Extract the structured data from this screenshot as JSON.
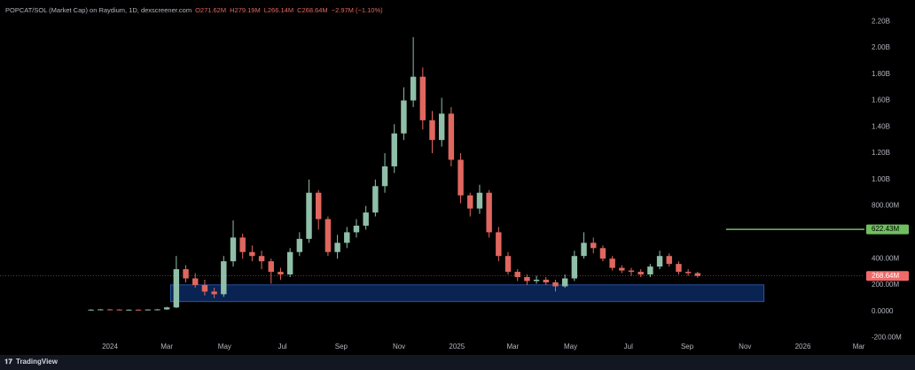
{
  "chart_data": {
    "type": "candlestick",
    "title": "POPCAT/SOL (Market Cap) on Raydium, 1D, dexscreener.com",
    "stats": [
      "O271.62M",
      "H279.19M",
      "L266.14M",
      "C268.64M",
      "−2.97M (−1.10%)"
    ],
    "x": [
      -20,
      -10,
      0,
      10,
      20,
      30,
      40,
      50,
      60,
      70,
      80,
      90,
      100,
      110,
      120,
      130,
      140,
      150,
      160,
      170,
      180,
      190,
      200,
      210,
      220,
      230,
      240,
      250,
      260,
      270,
      280,
      290,
      300,
      310,
      320,
      330,
      340,
      350,
      360,
      370,
      380,
      390,
      400,
      410,
      420,
      430,
      440,
      450,
      460,
      470,
      480,
      490,
      500,
      510,
      520,
      530,
      540,
      550,
      560,
      570,
      580,
      590,
      600,
      610,
      620
    ],
    "open": [
      10,
      13,
      15,
      14,
      12,
      13,
      12,
      14,
      15,
      30,
      320,
      250,
      200,
      150,
      130,
      380,
      560,
      450,
      420,
      380,
      300,
      280,
      450,
      550,
      900,
      700,
      450,
      520,
      600,
      650,
      750,
      950,
      1100,
      1350,
      1600,
      1780,
      1450,
      1300,
      1500,
      1150,
      880,
      780,
      900,
      600,
      420,
      300,
      260,
      230,
      240,
      220,
      190,
      250,
      420,
      520,
      480,
      400,
      330,
      310,
      300,
      280,
      340,
      420,
      360,
      300,
      290
    ],
    "high": [
      16,
      18,
      18,
      17,
      15,
      16,
      16,
      18,
      35,
      420,
      350,
      290,
      240,
      180,
      420,
      690,
      590,
      500,
      460,
      400,
      330,
      480,
      600,
      1000,
      920,
      720,
      580,
      640,
      700,
      800,
      1000,
      1200,
      1420,
      1700,
      2080,
      1850,
      1520,
      1620,
      1550,
      1200,
      900,
      960,
      920,
      640,
      450,
      320,
      280,
      270,
      260,
      240,
      280,
      460,
      600,
      560,
      500,
      420,
      350,
      330,
      320,
      360,
      460,
      440,
      380,
      320,
      300
    ],
    "low": [
      8,
      10,
      11,
      10,
      9,
      10,
      10,
      11,
      12,
      25,
      220,
      180,
      120,
      100,
      110,
      340,
      400,
      380,
      320,
      210,
      240,
      260,
      420,
      520,
      620,
      420,
      400,
      480,
      560,
      620,
      720,
      900,
      1050,
      1300,
      1550,
      1380,
      1200,
      1250,
      1100,
      820,
      720,
      740,
      560,
      380,
      280,
      230,
      200,
      210,
      200,
      150,
      180,
      230,
      400,
      440,
      380,
      310,
      290,
      270,
      260,
      260,
      320,
      340,
      280,
      270,
      255
    ],
    "close": [
      13,
      15,
      14,
      12,
      13,
      12,
      14,
      15,
      30,
      320,
      250,
      200,
      150,
      130,
      380,
      560,
      450,
      420,
      380,
      300,
      280,
      450,
      550,
      900,
      700,
      450,
      520,
      600,
      650,
      750,
      950,
      1100,
      1350,
      1600,
      1780,
      1450,
      1300,
      1500,
      1150,
      880,
      780,
      900,
      600,
      420,
      300,
      260,
      230,
      240,
      220,
      190,
      250,
      420,
      520,
      480,
      400,
      330,
      310,
      300,
      280,
      340,
      420,
      360,
      300,
      290,
      268.64
    ],
    "up_color": "#8fbfa8",
    "down_color": "#e0675f",
    "xlim": [
      -116,
      796
    ],
    "xticks": [
      {
        "value": 0,
        "label": "2024"
      },
      {
        "value": 60,
        "label": "Mar"
      },
      {
        "value": 121,
        "label": "May"
      },
      {
        "value": 182,
        "label": "Jul"
      },
      {
        "value": 244,
        "label": "Sep"
      },
      {
        "value": 305,
        "label": "Nov"
      },
      {
        "value": 366,
        "label": "2025"
      },
      {
        "value": 425,
        "label": "Mar"
      },
      {
        "value": 486,
        "label": "May"
      },
      {
        "value": 547,
        "label": "Jul"
      },
      {
        "value": 609,
        "label": "Sep"
      },
      {
        "value": 670,
        "label": "Nov"
      },
      {
        "value": 731,
        "label": "2026"
      },
      {
        "value": 790,
        "label": "Mar"
      }
    ],
    "ylim": [
      -230,
      2295
    ],
    "yticks": [
      {
        "value": -200,
        "label": "-200.00M"
      },
      {
        "value": 0,
        "label": "0.0000"
      },
      {
        "value": 200,
        "label": "200.00M"
      },
      {
        "value": 400,
        "label": "400.00M"
      },
      {
        "value": 800,
        "label": "800.00M"
      },
      {
        "value": 1000,
        "label": "1.00B"
      },
      {
        "value": 1200,
        "label": "1.20B"
      },
      {
        "value": 1400,
        "label": "1.40B"
      },
      {
        "value": 1600,
        "label": "1.60B"
      },
      {
        "value": 1800,
        "label": "1.80B"
      },
      {
        "value": 2000,
        "label": "2.00B"
      },
      {
        "value": 2200,
        "label": "2.20B"
      }
    ],
    "zone": {
      "x": [
        64,
        690
      ],
      "y": [
        74,
        201
      ],
      "color": "#0c2f6e"
    },
    "level": {
      "value": 622.43,
      "label": "622.43M",
      "from": 650,
      "color": "#6fbf5f"
    },
    "last_label": {
      "value": 268.64,
      "label": "268.64M",
      "color": "#f06a6a"
    },
    "footer": "TradingView"
  }
}
